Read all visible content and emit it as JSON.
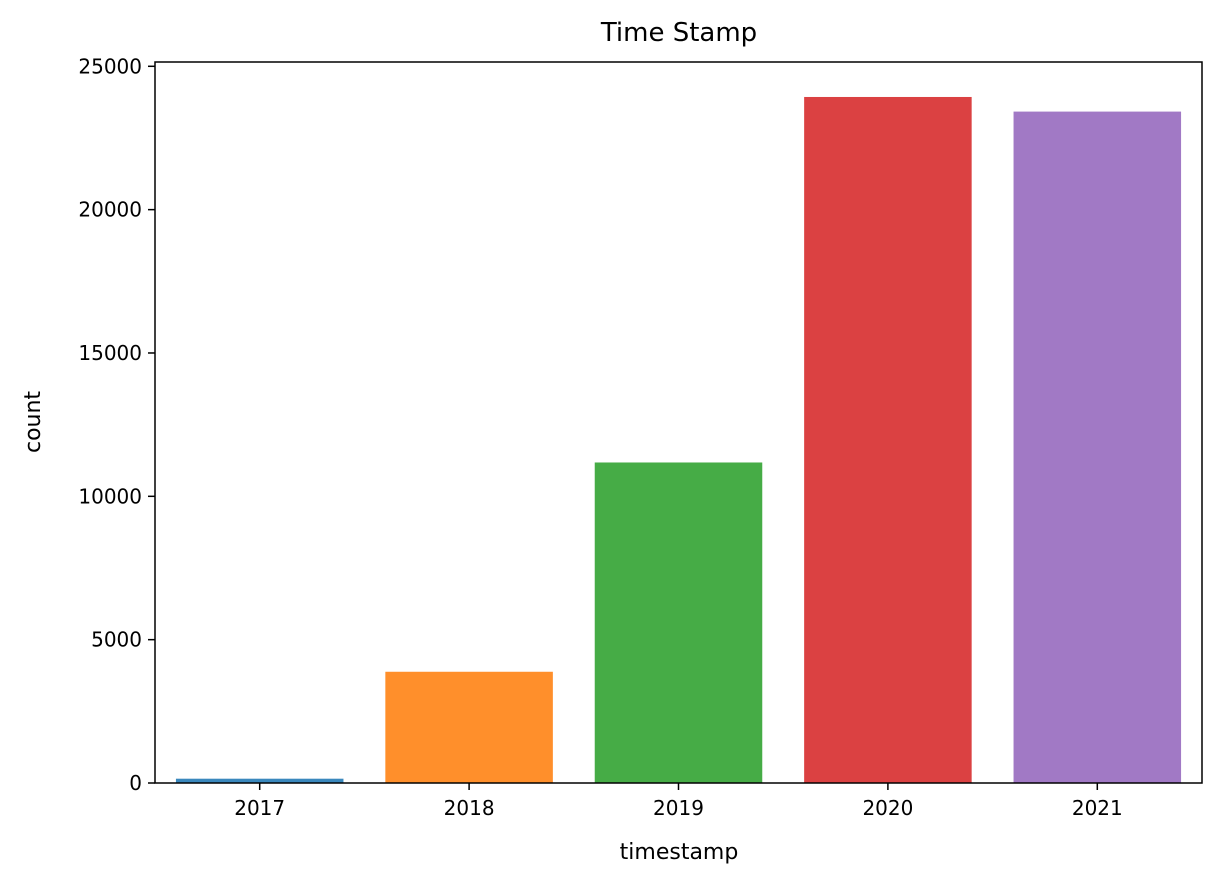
{
  "chart_data": {
    "type": "bar",
    "title": "Time Stamp",
    "xlabel": "timestamp",
    "ylabel": "count",
    "categories": [
      "2017",
      "2018",
      "2019",
      "2020",
      "2021"
    ],
    "values": [
      150,
      3880,
      11180,
      23930,
      23420
    ],
    "colors": [
      "#1f77b4",
      "#ff7f0e",
      "#2ca02c",
      "#d62728",
      "#9467bd"
    ],
    "bar_opacity": 0.88,
    "ylim": [
      0,
      25150
    ],
    "yticks": [
      0,
      5000,
      10000,
      15000,
      20000,
      25000
    ],
    "grid": false,
    "legend": "none"
  }
}
